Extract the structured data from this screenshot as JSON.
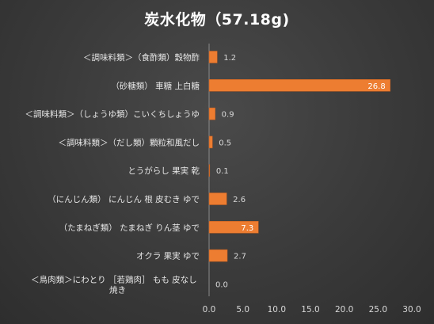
{
  "chart_data": {
    "type": "bar",
    "orientation": "horizontal",
    "title": "炭水化物（57.18g)",
    "categories": [
      "＜調味料類＞（食酢類）穀物酢",
      "（砂糖類） 車糖 上白糖",
      "＜調味料類＞（しょうゆ類）こいくちしょうゆ",
      "＜調味料類＞（だし類）顆粒和風だし",
      "とうがらし 果実 乾",
      "（にんじん類） にんじん 根 皮むき ゆで",
      "（たまねぎ類） たまねぎ りん茎 ゆで",
      "オクラ 果実 ゆで",
      "＜鳥肉類＞にわとり ［若鶏肉］ もも 皮なし 焼き"
    ],
    "values": [
      1.2,
      26.8,
      0.9,
      0.5,
      0.1,
      2.6,
      7.3,
      2.7,
      0.0
    ],
    "value_labels": [
      "1.2",
      "26.8",
      "0.9",
      "0.5",
      "0.1",
      "2.6",
      "7.3",
      "2.7",
      "0.0"
    ],
    "xlim": [
      0,
      30
    ],
    "xticks": [
      "0.0",
      "5.0",
      "10.0",
      "15.0",
      "20.0",
      "25.0",
      "30.0"
    ],
    "bar_color": "#ed7d31",
    "data_labels": true,
    "grid": false,
    "legend": "none"
  }
}
